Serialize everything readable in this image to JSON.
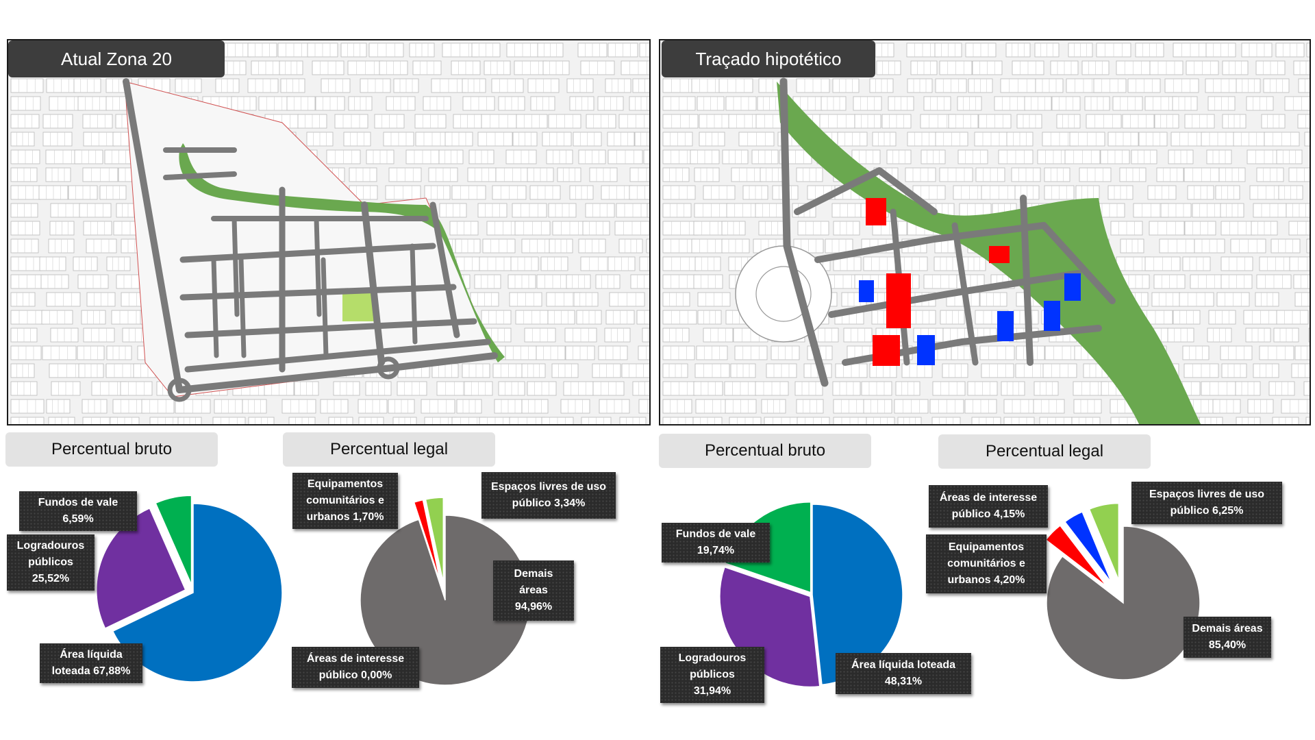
{
  "maps": {
    "left_title": "Atual Zona 20",
    "right_title": "Traçado hipotético"
  },
  "colors": {
    "liquida": "#0070C0",
    "logradouros": "#7030A0",
    "fundos": "#00B050",
    "demais": "#6E6B6B",
    "equipamentos": "#FF0000",
    "espacos": "#92D050",
    "interesse": "#0033FF",
    "street": "#7a7a7a",
    "park": "#6aa84f"
  },
  "chart_data": [
    {
      "type": "pie",
      "title": "Percentual bruto",
      "panel": "Atual Zona 20",
      "slices": [
        {
          "label": "Área líquida loteada",
          "value": 67.88,
          "color": "#0070C0"
        },
        {
          "label": "Logradouros públicos",
          "value": 25.52,
          "color": "#7030A0"
        },
        {
          "label": "Fundos de vale",
          "value": 6.59,
          "color": "#00B050"
        }
      ]
    },
    {
      "type": "pie",
      "title": "Percentual legal",
      "panel": "Atual Zona 20",
      "slices": [
        {
          "label": "Demais áreas",
          "value": 94.96,
          "color": "#6E6B6B"
        },
        {
          "label": "Áreas de interesse público",
          "value": 0.0,
          "color": "#0033FF"
        },
        {
          "label": "Equipamentos comunitários e urbanos",
          "value": 1.7,
          "color": "#FF0000"
        },
        {
          "label": "Espaços livres de uso público",
          "value": 3.34,
          "color": "#92D050"
        }
      ]
    },
    {
      "type": "pie",
      "title": "Percentual bruto",
      "panel": "Traçado hipotético",
      "slices": [
        {
          "label": "Área líquida loteada",
          "value": 48.31,
          "color": "#0070C0"
        },
        {
          "label": "Logradouros públicos",
          "value": 31.94,
          "color": "#7030A0"
        },
        {
          "label": "Fundos de vale",
          "value": 19.74,
          "color": "#00B050"
        }
      ]
    },
    {
      "type": "pie",
      "title": "Percentual legal",
      "panel": "Traçado hipotético",
      "slices": [
        {
          "label": "Demais áreas",
          "value": 85.4,
          "color": "#6E6B6B"
        },
        {
          "label": "Equipamentos comunitários e urbanos",
          "value": 4.2,
          "color": "#FF0000"
        },
        {
          "label": "Áreas de interesse público",
          "value": 4.15,
          "color": "#0033FF"
        },
        {
          "label": "Espaços livres de uso público",
          "value": 6.25,
          "color": "#92D050"
        }
      ]
    }
  ],
  "labels": {
    "p1": {
      "header": "Percentual bruto",
      "fundos": [
        "Fundos de vale",
        "6,59%"
      ],
      "logradouros": [
        "Logradouros",
        "públicos",
        "25,52%"
      ],
      "liquida": [
        "Área líquida",
        "loteada 67,88%"
      ]
    },
    "p2": {
      "header": "Percentual legal",
      "equipamentos": [
        "Equipamentos",
        "comunitários e",
        "urbanos 1,70%"
      ],
      "espacos": [
        "Espaços livres de uso",
        "público 3,34%"
      ],
      "demais": [
        "Demais",
        "áreas",
        "94,96%"
      ],
      "interesse": [
        "Áreas de interesse",
        "público 0,00%"
      ]
    },
    "p3": {
      "header": "Percentual bruto",
      "fundos": [
        "Fundos de vale",
        "19,74%"
      ],
      "logradouros": [
        "Logradouros",
        "públicos",
        "31,94%"
      ],
      "liquida": [
        "Área líquida loteada",
        "48,31%"
      ]
    },
    "p4": {
      "header": "Percentual legal",
      "interesse": [
        "Áreas de interesse",
        "público 4,15%"
      ],
      "espacos": [
        "Espaços livres de uso",
        "público 6,25%"
      ],
      "equipamentos": [
        "Equipamentos",
        "comunitários e",
        "urbanos 4,20%"
      ],
      "demais": [
        "Demais áreas",
        "85,40%"
      ]
    }
  }
}
